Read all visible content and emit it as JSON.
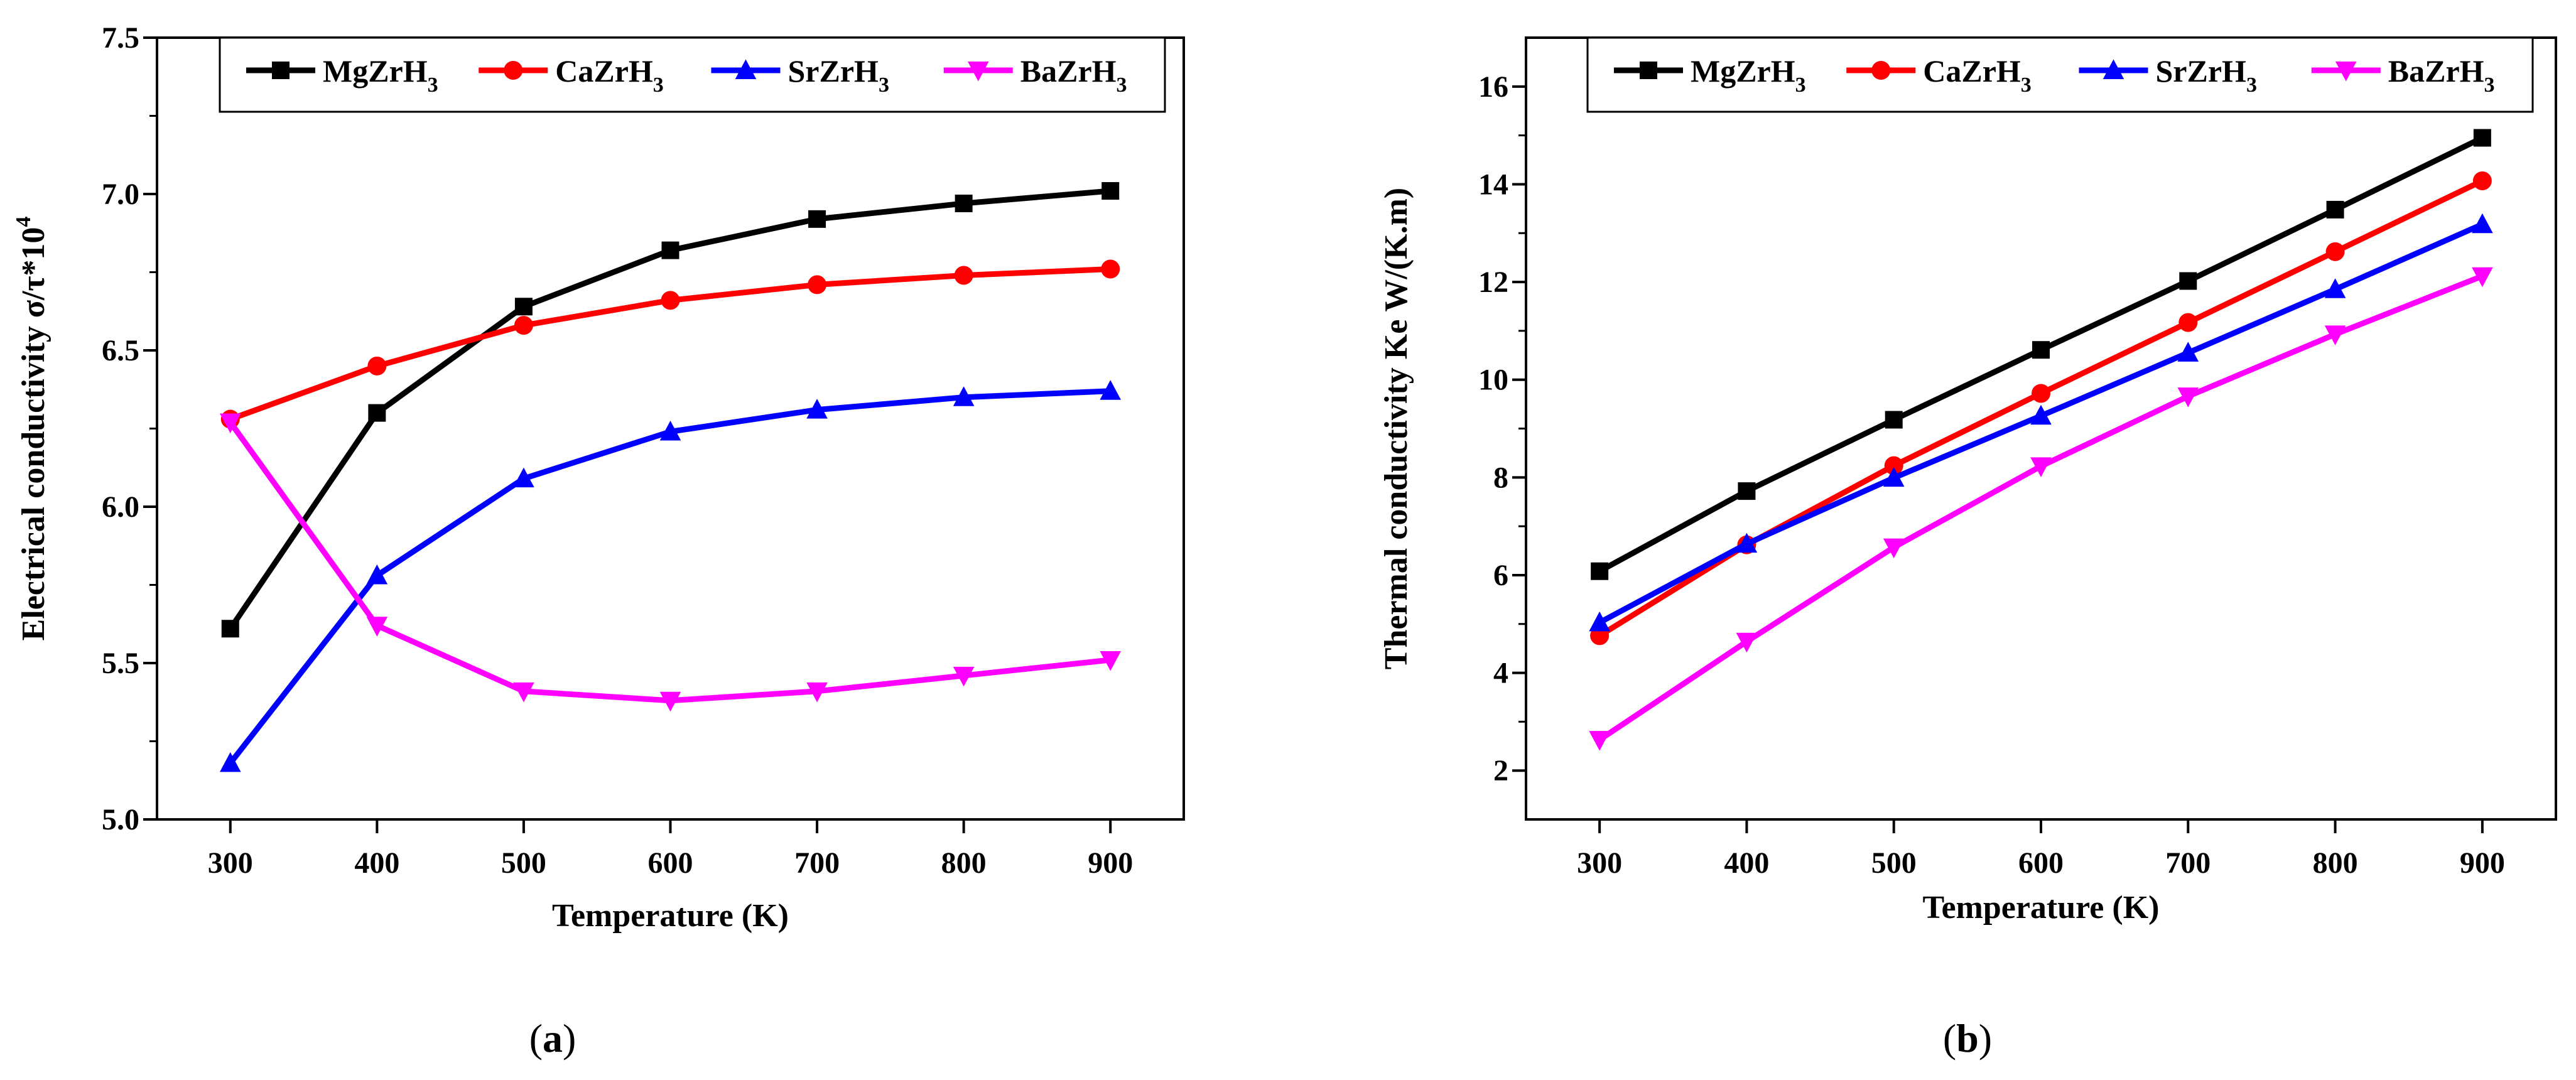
{
  "chart_data": [
    {
      "type": "line",
      "panel_label": "a",
      "xlabel": "Temperature (K)",
      "ylabel": "Electrical conductivity  σ/τ*10",
      "ylabel_sup": "4",
      "x": [
        300,
        400,
        500,
        600,
        700,
        800,
        900
      ],
      "xlim": [
        250,
        950
      ],
      "ylim": [
        5.0,
        7.5
      ],
      "xticks": [
        "300",
        "400",
        "500",
        "600",
        "700",
        "800",
        "900"
      ],
      "yticks": [
        "5.0",
        "5.5",
        "6.0",
        "6.5",
        "7.0",
        "7.5"
      ],
      "ytick_values": [
        5.0,
        5.5,
        6.0,
        6.5,
        7.0,
        7.5
      ],
      "legend_position": "top-right",
      "series": [
        {
          "name": "MgZrH",
          "sub": "3",
          "color": "#000000",
          "marker": "square",
          "values": [
            5.61,
            6.3,
            6.64,
            6.82,
            6.92,
            6.97,
            7.01
          ]
        },
        {
          "name": "CaZrH",
          "sub": "3",
          "color": "#ff0000",
          "marker": "circle",
          "values": [
            6.28,
            6.45,
            6.58,
            6.66,
            6.71,
            6.74,
            6.76
          ]
        },
        {
          "name": "SrZrH",
          "sub": "3",
          "color": "#0000ff",
          "marker": "triangle-up",
          "values": [
            5.18,
            5.78,
            6.09,
            6.24,
            6.31,
            6.35,
            6.37
          ]
        },
        {
          "name": "BaZrH",
          "sub": "3",
          "color": "#ff00ff",
          "marker": "triangle-down",
          "values": [
            6.27,
            5.62,
            5.41,
            5.38,
            5.41,
            5.46,
            5.51
          ]
        }
      ]
    },
    {
      "type": "line",
      "panel_label": "b",
      "xlabel": "Temperature (K)",
      "ylabel": "Thermal conductivity Ke W/(K.m)",
      "x": [
        300,
        400,
        500,
        600,
        700,
        800,
        900
      ],
      "xlim": [
        250,
        950
      ],
      "ylim": [
        1,
        17
      ],
      "xticks": [
        "300",
        "400",
        "500",
        "600",
        "700",
        "800",
        "900"
      ],
      "yticks": [
        "2",
        "4",
        "6",
        "8",
        "10",
        "12",
        "14",
        "16"
      ],
      "ytick_values": [
        2,
        4,
        6,
        8,
        10,
        12,
        14,
        16
      ],
      "legend_position": "top",
      "series": [
        {
          "name": "MgZrH",
          "sub": "3",
          "color": "#000000",
          "marker": "square",
          "values": [
            6.08,
            7.72,
            9.18,
            10.61,
            12.02,
            13.48,
            14.95
          ]
        },
        {
          "name": "CaZrH",
          "sub": "3",
          "color": "#ff0000",
          "marker": "circle",
          "values": [
            4.76,
            6.62,
            8.24,
            9.72,
            11.17,
            12.62,
            14.07
          ]
        },
        {
          "name": "SrZrH",
          "sub": "3",
          "color": "#0000ff",
          "marker": "triangle-up",
          "values": [
            5.03,
            6.64,
            7.99,
            9.26,
            10.55,
            11.85,
            13.18
          ]
        },
        {
          "name": "BaZrH",
          "sub": "3",
          "color": "#ff00ff",
          "marker": "triangle-down",
          "values": [
            2.63,
            4.64,
            6.57,
            8.23,
            9.66,
            10.93,
            12.12
          ]
        }
      ]
    }
  ]
}
